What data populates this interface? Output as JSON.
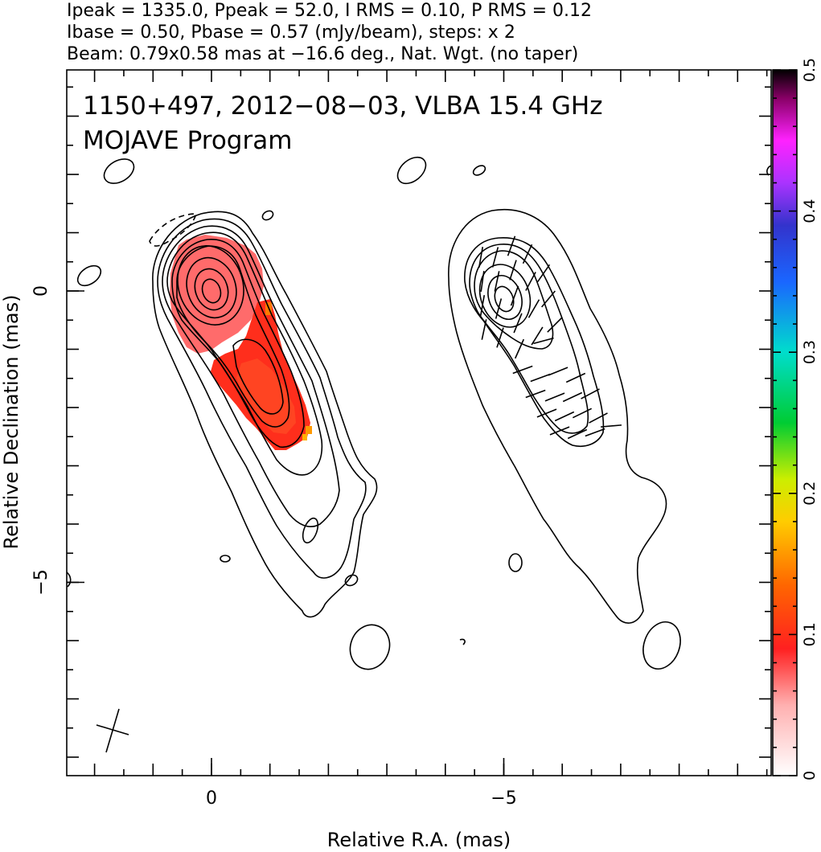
{
  "header": {
    "line1": "Ipeak = 1335.0, Ppeak = 52.0, I RMS = 0.10, P RMS = 0.12",
    "line2": "Ibase = 0.50, Pbase = 0.57 (mJy/beam), steps: x 2",
    "line3": "Beam: 0.79x0.58 mas at −16.6 deg., Nat. Wgt. (no taper)"
  },
  "plot_title": {
    "line1": "1150+497, 2012−08−03, VLBA 15.4 GHz",
    "line2": "MOJAVE Program"
  },
  "colors": {
    "fpol_fill": "#ff2a1a",
    "fpol_core": "#ff6a6a",
    "fpol_edge": "#ff9a00",
    "contour": "#000000"
  },
  "chart_data": {
    "type": "heatmap",
    "title": "1150+497, 2012−08−03, VLBA 15.4 GHz",
    "subtitle": "MOJAVE Program",
    "xlabel": "Relative R.A. (mas)",
    "ylabel": "Relative Declination (mas)",
    "x_ticks": [
      {
        "value": 0,
        "label": "0"
      },
      {
        "value": -5,
        "label": "−5"
      }
    ],
    "y_ticks": [
      {
        "value": 0,
        "label": "0"
      },
      {
        "value": -5,
        "label": "−5"
      }
    ],
    "xlim": [
      2.5,
      -9.5
    ],
    "ylim": [
      -8.3,
      3.8
    ],
    "panels": [
      "total intensity contours with fractional polarization color",
      "total intensity contours with EVPA sticks"
    ],
    "colorbar": {
      "range": [
        0,
        0.5
      ],
      "ticks": [
        {
          "value": 0,
          "label": "0"
        },
        {
          "value": 0.1,
          "label": "0.1"
        },
        {
          "value": 0.2,
          "label": "0.2"
        },
        {
          "value": 0.3,
          "label": "0.3"
        },
        {
          "value": 0.4,
          "label": "0.4"
        },
        {
          "value": 0.5,
          "label": "0.5"
        }
      ]
    },
    "beam": {
      "major_mas": 0.79,
      "minor_mas": 0.58,
      "pa_deg": -16.6
    }
  }
}
